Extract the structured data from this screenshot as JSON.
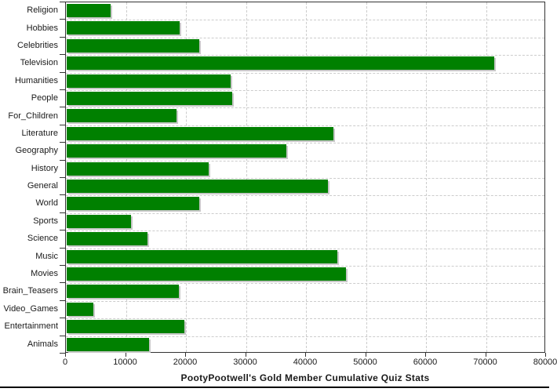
{
  "chart_data": {
    "type": "bar",
    "orientation": "horizontal",
    "title": "PootyPootwell's Gold Member Cumulative Quiz Stats",
    "categories": [
      "Religion",
      "Hobbies",
      "Celebrities",
      "Television",
      "Humanities",
      "People",
      "For_Children",
      "Literature",
      "Geography",
      "History",
      "General",
      "World",
      "Sports",
      "Science",
      "Music",
      "Movies",
      "Brain_Teasers",
      "Video_Games",
      "Entertainment",
      "Animals"
    ],
    "values": [
      7300,
      18800,
      22100,
      71200,
      27300,
      27600,
      18300,
      44400,
      36600,
      23700,
      43500,
      22100,
      10700,
      13500,
      45100,
      46500,
      18700,
      4500,
      19600,
      13700
    ],
    "xlim": [
      0,
      80000
    ],
    "x_ticks": [
      0,
      10000,
      20000,
      30000,
      40000,
      50000,
      60000,
      70000,
      80000
    ],
    "x_tick_labels": [
      "0",
      "10000",
      "20000",
      "30000",
      "40000",
      "50000",
      "60000",
      "70000",
      "80000"
    ],
    "grid": true,
    "legend": false,
    "bar_color": "#008000",
    "shadow_color": "#c8c8c8",
    "gridline_color": "#cccccc"
  }
}
